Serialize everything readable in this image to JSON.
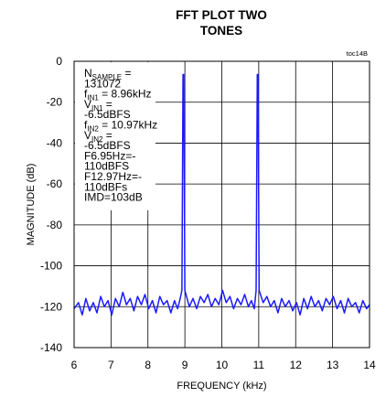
{
  "chart_data": {
    "type": "line",
    "title_lines": [
      "FFT PLOT TWO",
      "TONES"
    ],
    "tag": "toc14B",
    "xlabel": "FREQUENCY (kHz)",
    "ylabel": "MAGNITUDE (dB)",
    "xlim": [
      6,
      14
    ],
    "ylim": [
      -140,
      0
    ],
    "xticks": [
      "6",
      "7",
      "8",
      "9",
      "10",
      "11",
      "12",
      "13",
      "14"
    ],
    "yticks": [
      "0",
      "-20",
      "-40",
      "-60",
      "-80",
      "-100",
      "-120",
      "-140"
    ],
    "grid": true,
    "series_color": "#1a1aff",
    "tones": [
      {
        "freq_khz": 8.96,
        "level_dbfs": -6.5
      },
      {
        "freq_khz": 10.97,
        "level_dbfs": -6.5
      }
    ],
    "noise_floor_db": [
      -124,
      -112
    ],
    "noise_floor_points": [
      [
        6.0,
        -121
      ],
      [
        6.12,
        -118
      ],
      [
        6.22,
        -124
      ],
      [
        6.32,
        -116
      ],
      [
        6.42,
        -122
      ],
      [
        6.52,
        -118
      ],
      [
        6.62,
        -123
      ],
      [
        6.72,
        -115
      ],
      [
        6.82,
        -120
      ],
      [
        6.92,
        -117
      ],
      [
        7.02,
        -124
      ],
      [
        7.12,
        -116
      ],
      [
        7.22,
        -120
      ],
      [
        7.32,
        -113
      ],
      [
        7.42,
        -119
      ],
      [
        7.52,
        -116
      ],
      [
        7.62,
        -122
      ],
      [
        7.72,
        -115
      ],
      [
        7.82,
        -119
      ],
      [
        7.92,
        -114
      ],
      [
        8.02,
        -121
      ],
      [
        8.12,
        -117
      ],
      [
        8.22,
        -123
      ],
      [
        8.32,
        -115
      ],
      [
        8.42,
        -119
      ],
      [
        8.52,
        -117
      ],
      [
        8.62,
        -123
      ],
      [
        8.72,
        -117
      ],
      [
        8.8,
        -121
      ],
      [
        8.86,
        -117
      ],
      [
        9.12,
        -120
      ],
      [
        9.22,
        -116
      ],
      [
        9.32,
        -121
      ],
      [
        9.42,
        -115
      ],
      [
        9.52,
        -118
      ],
      [
        9.62,
        -114
      ],
      [
        9.72,
        -120
      ],
      [
        9.82,
        -116
      ],
      [
        9.92,
        -119
      ],
      [
        10.02,
        -112
      ],
      [
        10.12,
        -118
      ],
      [
        10.22,
        -115
      ],
      [
        10.32,
        -121
      ],
      [
        10.42,
        -116
      ],
      [
        10.52,
        -119
      ],
      [
        10.62,
        -114
      ],
      [
        10.72,
        -120
      ],
      [
        10.8,
        -117
      ],
      [
        10.88,
        -121
      ],
      [
        11.12,
        -118
      ],
      [
        11.22,
        -115
      ],
      [
        11.32,
        -120
      ],
      [
        11.42,
        -117
      ],
      [
        11.52,
        -123
      ],
      [
        11.62,
        -116
      ],
      [
        11.72,
        -120
      ],
      [
        11.82,
        -117
      ],
      [
        11.92,
        -122
      ],
      [
        12.02,
        -118
      ],
      [
        12.12,
        -124
      ],
      [
        12.22,
        -116
      ],
      [
        12.32,
        -121
      ],
      [
        12.42,
        -115
      ],
      [
        12.52,
        -120
      ],
      [
        12.62,
        -117
      ],
      [
        12.72,
        -122
      ],
      [
        12.82,
        -116
      ],
      [
        12.92,
        -119
      ],
      [
        13.02,
        -115
      ],
      [
        13.12,
        -121
      ],
      [
        13.22,
        -117
      ],
      [
        13.32,
        -123
      ],
      [
        13.42,
        -116
      ],
      [
        13.52,
        -120
      ],
      [
        13.62,
        -118
      ],
      [
        13.72,
        -123
      ],
      [
        13.82,
        -117
      ],
      [
        13.92,
        -121
      ],
      [
        14.0,
        -119
      ]
    ],
    "annotation": [
      {
        "parts": [
          [
            "N",
            ""
          ],
          [
            "SAMPLE",
            "sub"
          ],
          [
            " =",
            ""
          ]
        ]
      },
      {
        "parts": [
          [
            "131072",
            ""
          ]
        ]
      },
      {
        "parts": [
          [
            "f",
            ""
          ],
          [
            "IN1",
            "sub"
          ],
          [
            " = 8.96kHz",
            ""
          ]
        ]
      },
      {
        "parts": [
          [
            "V",
            ""
          ],
          [
            "IN1",
            "sub"
          ],
          [
            " =",
            ""
          ]
        ]
      },
      {
        "parts": [
          [
            "-6.5dBFS",
            ""
          ]
        ]
      },
      {
        "parts": [
          [
            "f",
            ""
          ],
          [
            "IN2",
            "sub"
          ],
          [
            " = 10.97kHz",
            ""
          ]
        ]
      },
      {
        "parts": [
          [
            "V",
            ""
          ],
          [
            "IN2",
            "sub"
          ],
          [
            " =",
            ""
          ]
        ]
      },
      {
        "parts": [
          [
            "-6.5dBFS",
            ""
          ]
        ]
      },
      {
        "parts": [
          [
            "F6.95Hz=-",
            ""
          ]
        ]
      },
      {
        "parts": [
          [
            "110dBFS",
            ""
          ]
        ]
      },
      {
        "parts": [
          [
            "F12.97Hz=-",
            ""
          ]
        ]
      },
      {
        "parts": [
          [
            "110dBFs",
            ""
          ]
        ]
      },
      {
        "parts": [
          [
            "IMD=103dB",
            ""
          ]
        ]
      }
    ]
  }
}
